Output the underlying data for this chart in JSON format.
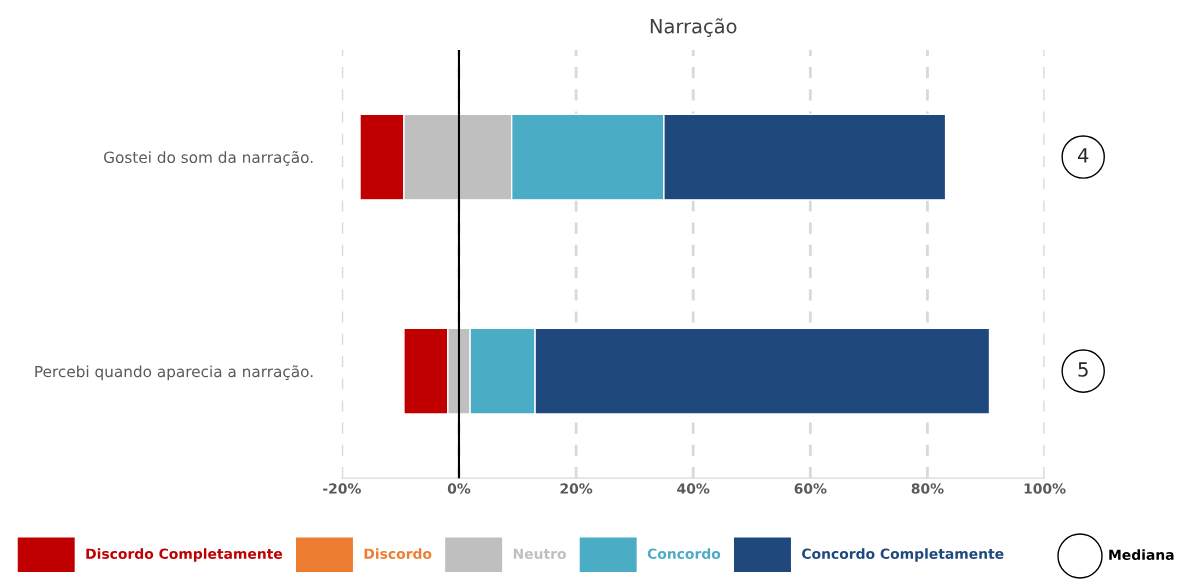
{
  "chart_data": {
    "type": "bar",
    "orientation": "horizontal",
    "title": "Narração",
    "categories": [
      "Gostei do som da narração.",
      "Percebi quando aparecia a narração."
    ],
    "series": [
      {
        "name": "Discordo Completamente",
        "color": "#c00000",
        "base": [
          -16.9,
          -9.4
        ],
        "values": [
          7.5,
          7.5
        ]
      },
      {
        "name": "Discordo",
        "color": "#ed7d31",
        "values": [
          null,
          null
        ]
      },
      {
        "name": "Neutro",
        "color": "#bfbfbf",
        "base": [
          -9.4,
          -1.9
        ],
        "values": [
          18.4,
          3.8
        ]
      },
      {
        "name": "Concordo",
        "color": "#4bacc6",
        "base": [
          9.0,
          1.9
        ],
        "values": [
          26,
          11.1
        ]
      },
      {
        "name": "Concordo Completamente",
        "color": "#1f497d",
        "base": [
          35,
          13
        ],
        "values": [
          48.1,
          77.6
        ]
      }
    ],
    "xlim": [
      -20,
      100
    ],
    "xticks": [
      {
        "value": -20,
        "label": "-20%"
      },
      {
        "value": 0,
        "label": "0%"
      },
      {
        "value": 20,
        "label": "20%"
      },
      {
        "value": 40,
        "label": "40%"
      },
      {
        "value": 60,
        "label": "60%"
      },
      {
        "value": 80,
        "label": "80%"
      },
      {
        "value": 100,
        "label": "100%"
      }
    ],
    "grid": "x",
    "legend": "bottom",
    "ref_lines": [
      {
        "axis": "x",
        "value": 0,
        "color": "#000000"
      }
    ],
    "annotations": [
      "4",
      "5",
      "Mediana"
    ]
  }
}
